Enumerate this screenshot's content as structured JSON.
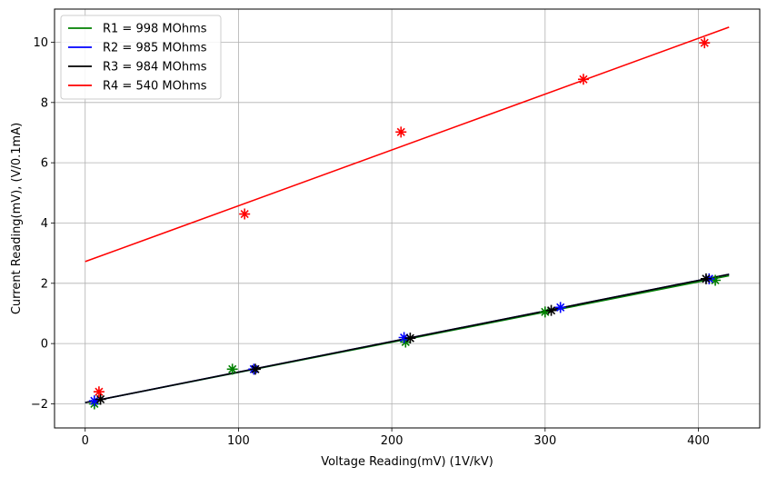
{
  "chart_data": {
    "type": "scatter",
    "title": "",
    "xlabel": "Voltage Reading(mV) (1V/kV)",
    "ylabel": "Current Reading(mV), (V/0.1mA)",
    "xlim": [
      -20,
      440
    ],
    "ylim": [
      -2.8,
      11.1
    ],
    "xticks": [
      0,
      100,
      200,
      300,
      400
    ],
    "yticks": [
      -2,
      0,
      2,
      4,
      6,
      8,
      10
    ],
    "grid": true,
    "legend_position": "top-left",
    "series": [
      {
        "name": "R1 = 998 MOhms",
        "color": "#008000",
        "fit": {
          "x": [
            0,
            420
          ],
          "y": [
            -1.96,
            2.25
          ]
        },
        "points": [
          {
            "x": 6,
            "y": -2.0
          },
          {
            "x": 96,
            "y": -0.85
          },
          {
            "x": 209,
            "y": 0.05
          },
          {
            "x": 300,
            "y": 1.05
          },
          {
            "x": 411,
            "y": 2.1
          }
        ]
      },
      {
        "name": "R2 = 985 MOhms",
        "color": "#0000ff",
        "fit": {
          "x": [
            0,
            420
          ],
          "y": [
            -1.96,
            2.3
          ]
        },
        "points": [
          {
            "x": 6,
            "y": -1.9
          },
          {
            "x": 110,
            "y": -0.85
          },
          {
            "x": 208,
            "y": 0.2
          },
          {
            "x": 310,
            "y": 1.2
          },
          {
            "x": 407,
            "y": 2.15
          }
        ]
      },
      {
        "name": "R3 = 984 MOhms",
        "color": "#000000",
        "fit": {
          "x": [
            0,
            420
          ],
          "y": [
            -1.96,
            2.3
          ]
        },
        "points": [
          {
            "x": 10,
            "y": -1.85
          },
          {
            "x": 111,
            "y": -0.85
          },
          {
            "x": 212,
            "y": 0.18
          },
          {
            "x": 304,
            "y": 1.1
          },
          {
            "x": 405,
            "y": 2.15
          }
        ]
      },
      {
        "name": "R4 = 540 MOhms",
        "color": "#ff0000",
        "fit": {
          "x": [
            0,
            420
          ],
          "y": [
            2.72,
            10.5
          ]
        },
        "points": [
          {
            "x": 9,
            "y": -1.6
          },
          {
            "x": 104,
            "y": 4.3
          },
          {
            "x": 206,
            "y": 7.02
          },
          {
            "x": 325,
            "y": 8.77
          },
          {
            "x": 404,
            "y": 9.98
          }
        ]
      }
    ]
  }
}
